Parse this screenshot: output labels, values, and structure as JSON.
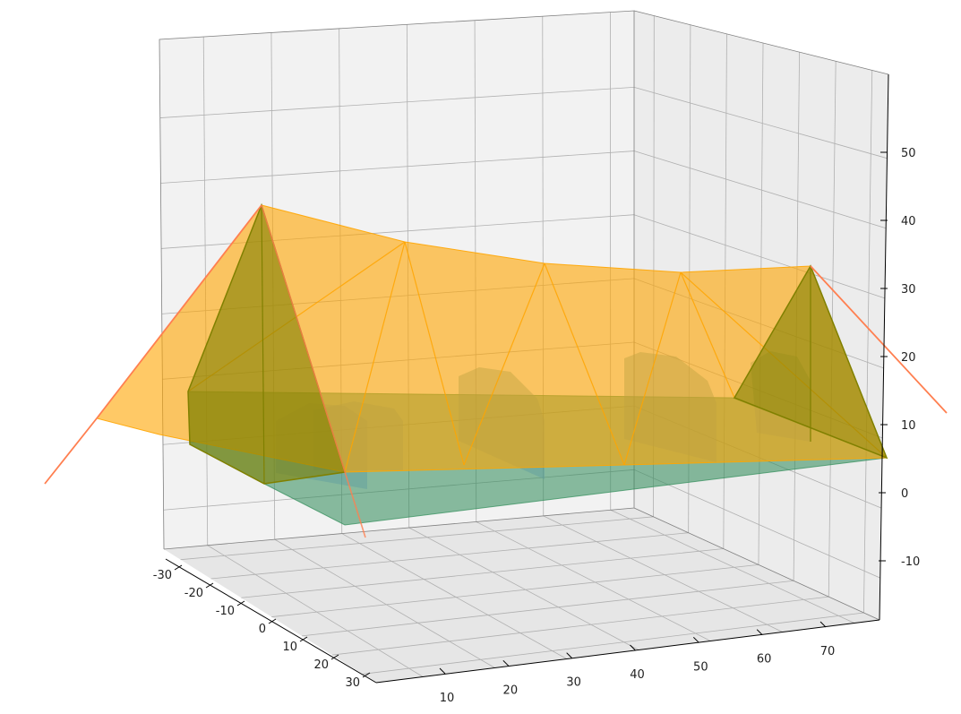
{
  "chart_data": {
    "type": "3d-surface",
    "title": "",
    "x_axis": {
      "label": "",
      "ticks": [
        -30,
        -20,
        -10,
        0,
        10,
        20,
        30
      ]
    },
    "y_axis": {
      "label": "",
      "ticks": [
        10,
        20,
        30,
        40,
        50,
        60,
        70
      ]
    },
    "z_axis": {
      "label": "",
      "ticks": [
        -10,
        0,
        10,
        20,
        30,
        40,
        50
      ]
    },
    "grid": true,
    "series": [
      {
        "kind": "deck-plane",
        "color": "#2e8b57"
      },
      {
        "kind": "cable-surface",
        "color": "#ffa500"
      },
      {
        "kind": "towers",
        "color": "#808000"
      },
      {
        "kind": "piers",
        "color": "#5f9ea0"
      },
      {
        "kind": "main-cable",
        "color": "#ff7f50"
      }
    ],
    "colors": {
      "pane": "#f2f2f2",
      "deck": "#2e8b57",
      "cable_surface": "#ffa500",
      "tower": "#808000",
      "pier": "#5f9ea0",
      "cable": "#ff7f50"
    }
  }
}
